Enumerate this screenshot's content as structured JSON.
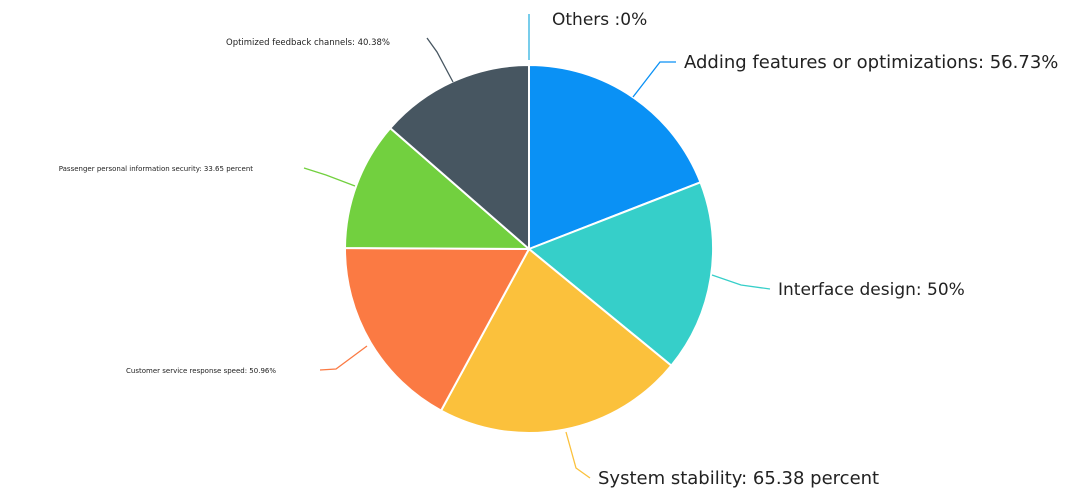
{
  "chart_data": {
    "type": "pie",
    "title": "",
    "legend": "none",
    "slices": [
      {
        "label": "Others :0%",
        "value": 0,
        "color": "#2fb2e0"
      },
      {
        "label": "Adding features or optimizations: 56.73%",
        "value": 56.73,
        "color": "#0a91f5"
      },
      {
        "label": "Interface design: 50%",
        "value": 50,
        "color": "#36cfc9"
      },
      {
        "label": "System stability: 65.38 percent",
        "value": 65.38,
        "color": "#fbc13c"
      },
      {
        "label": "Customer service response speed: 50.96%",
        "value": 50.96,
        "color": "#fb7a43"
      },
      {
        "label": "Passenger personal information security: 33.65 percent",
        "value": 33.65,
        "color": "#72d03f"
      },
      {
        "label": "Optimized feedback channels: 40.38%",
        "value": 40.38,
        "color": "#475661"
      }
    ]
  }
}
